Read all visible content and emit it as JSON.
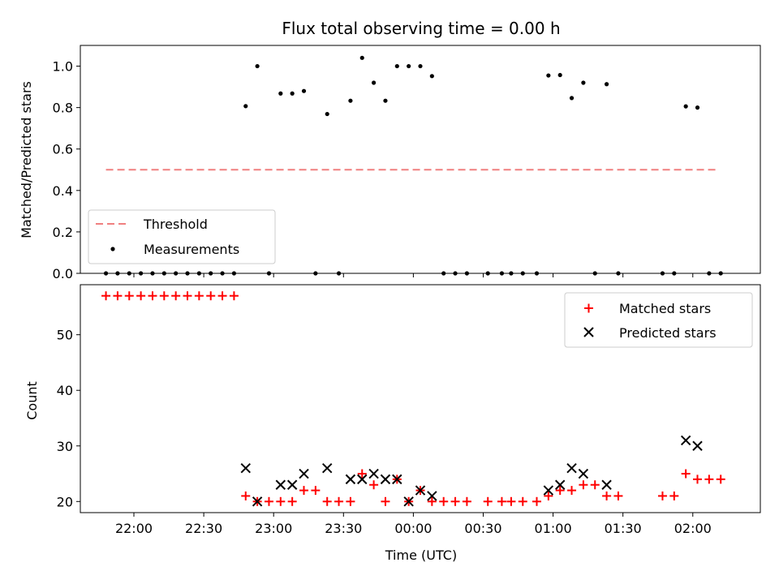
{
  "chart_data": [
    {
      "type": "scatter",
      "title": "Flux total observing time = 0.00 h",
      "xlabel": "",
      "ylabel": "Matched/Predicted stars",
      "ylim": [
        0,
        1.1
      ],
      "xlim": [
        "21:37",
        "02:29"
      ],
      "yticks": [
        "0.0",
        "0.2",
        "0.4",
        "0.6",
        "0.8",
        "1.0"
      ],
      "legend": {
        "placement": "lower-left",
        "entries": [
          "Threshold",
          "Measurements"
        ]
      },
      "threshold": {
        "name": "Threshold",
        "value": 0.5,
        "x_start": "21:48",
        "x_end": "02:10",
        "color": "#f08080"
      },
      "series": [
        {
          "name": "Measurements",
          "color": "#000000",
          "x": [
            "21:48",
            "21:53",
            "21:58",
            "22:03",
            "22:08",
            "22:13",
            "22:18",
            "22:23",
            "22:28",
            "22:33",
            "22:38",
            "22:43",
            "22:48",
            "22:53",
            "22:58",
            "23:03",
            "23:08",
            "23:13",
            "23:18",
            "23:23",
            "23:28",
            "23:33",
            "23:38",
            "23:43",
            "23:48",
            "23:53",
            "23:58",
            "00:03",
            "00:08",
            "00:13",
            "00:18",
            "00:23",
            "00:32",
            "00:38",
            "00:42",
            "00:47",
            "00:53",
            "00:58",
            "01:03",
            "01:08",
            "01:13",
            "01:18",
            "01:23",
            "01:28",
            "01:47",
            "01:52",
            "01:57",
            "02:02",
            "02:07",
            "02:12"
          ],
          "y": [
            0.0,
            0.0,
            0.0,
            0.0,
            0.0,
            0.0,
            0.0,
            0.0,
            0.0,
            0.0,
            0.0,
            0.0,
            0.807,
            1.0,
            0.0,
            0.868,
            0.868,
            0.88,
            0.0,
            0.769,
            0.0,
            0.833,
            1.04,
            0.92,
            0.833,
            1.0,
            1.0,
            1.0,
            0.952,
            0.0,
            0.0,
            0.0,
            0.0,
            0.0,
            0.0,
            0.0,
            0.0,
            0.955,
            0.957,
            0.846,
            0.92,
            0.0,
            0.913,
            0.0,
            0.0,
            0.0,
            0.806,
            0.8,
            0.0,
            0.0
          ]
        }
      ]
    },
    {
      "type": "scatter",
      "title": "",
      "xlabel": "Time (UTC)",
      "ylabel": "Count",
      "ylim": [
        18,
        59
      ],
      "xlim": [
        "21:37",
        "02:29"
      ],
      "yticks": [
        "20",
        "30",
        "40",
        "50"
      ],
      "xticks": [
        "22:00",
        "22:30",
        "23:00",
        "23:30",
        "00:00",
        "00:30",
        "01:00",
        "01:30",
        "02:00"
      ],
      "legend": {
        "placement": "top-right",
        "entries": [
          "Matched stars",
          "Predicted stars"
        ]
      },
      "series": [
        {
          "name": "Matched stars",
          "marker": "+",
          "color": "#ff0000",
          "x": [
            "21:48",
            "21:53",
            "21:58",
            "22:03",
            "22:08",
            "22:13",
            "22:18",
            "22:23",
            "22:28",
            "22:33",
            "22:38",
            "22:43",
            "22:48",
            "22:53",
            "22:58",
            "23:03",
            "23:08",
            "23:13",
            "23:18",
            "23:23",
            "23:28",
            "23:33",
            "23:38",
            "23:43",
            "23:48",
            "23:53",
            "23:58",
            "00:03",
            "00:08",
            "00:13",
            "00:18",
            "00:23",
            "00:32",
            "00:38",
            "00:42",
            "00:47",
            "00:53",
            "00:58",
            "01:03",
            "01:08",
            "01:13",
            "01:18",
            "01:23",
            "01:28",
            "01:47",
            "01:52",
            "01:57",
            "02:02",
            "02:07",
            "02:12"
          ],
          "y": [
            57,
            57,
            57,
            57,
            57,
            57,
            57,
            57,
            57,
            57,
            57,
            57,
            21,
            20,
            20,
            20,
            20,
            22,
            22,
            20,
            20,
            20,
            25,
            23,
            20,
            24,
            20,
            22,
            20,
            20,
            20,
            20,
            20,
            20,
            20,
            20,
            20,
            21,
            22,
            22,
            23,
            23,
            21,
            21,
            21,
            21,
            25,
            24,
            24,
            24
          ]
        },
        {
          "name": "Predicted stars",
          "marker": "x",
          "color": "#000000",
          "x": [
            "22:48",
            "22:53",
            "23:03",
            "23:08",
            "23:13",
            "23:23",
            "23:33",
            "23:38",
            "23:43",
            "23:48",
            "23:53",
            "23:58",
            "00:03",
            "00:08",
            "00:58",
            "01:03",
            "01:08",
            "01:13",
            "01:23",
            "01:57",
            "02:02"
          ],
          "y": [
            26,
            20,
            23,
            23,
            25,
            26,
            24,
            24,
            25,
            24,
            24,
            20,
            22,
            21,
            22,
            23,
            26,
            25,
            23,
            31,
            30
          ]
        }
      ]
    }
  ]
}
